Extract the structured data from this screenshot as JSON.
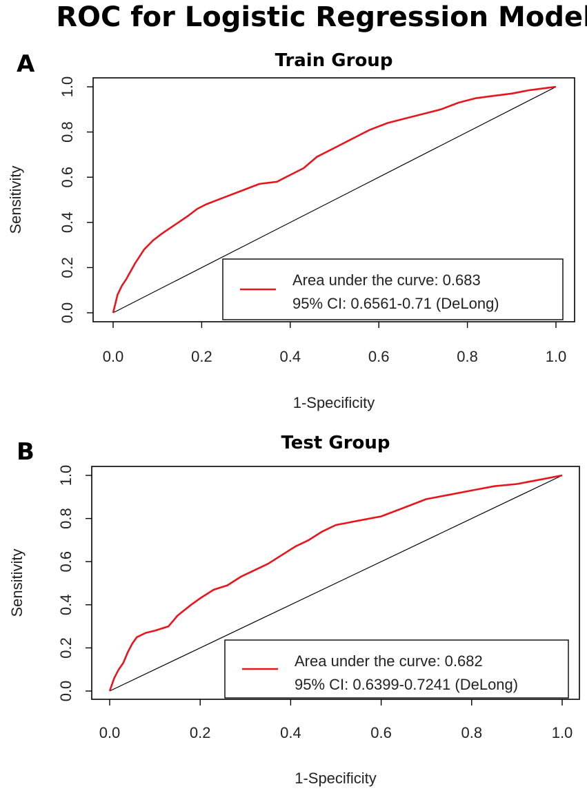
{
  "figure": {
    "title": "ROC for Logistic Regression Model"
  },
  "colors": {
    "roc_curve": "#e8141c",
    "diagonal": "#000000",
    "axis": "#000000"
  },
  "chart_data": [
    {
      "type": "line",
      "panel_label": "A",
      "title": "Train Group",
      "xlabel": "1-Specificity",
      "ylabel": "Sensitivity",
      "xlim": [
        0.0,
        1.0
      ],
      "ylim": [
        0.0,
        1.0
      ],
      "xticks": [
        "0.0",
        "0.2",
        "0.4",
        "0.6",
        "0.8",
        "1.0"
      ],
      "yticks": [
        "0.0",
        "0.2",
        "0.4",
        "0.6",
        "0.8",
        "1.0"
      ],
      "legend": {
        "placement": "bottom-right",
        "entries": [
          "Area under the curve: 0.683",
          "95% CI: 0.6561-0.71 (DeLong)"
        ]
      },
      "series": [
        {
          "name": "ROC curve",
          "x": [
            0.0,
            0.005,
            0.01,
            0.02,
            0.03,
            0.05,
            0.07,
            0.09,
            0.11,
            0.14,
            0.17,
            0.19,
            0.21,
            0.25,
            0.29,
            0.33,
            0.37,
            0.4,
            0.43,
            0.46,
            0.5,
            0.54,
            0.58,
            0.62,
            0.66,
            0.7,
            0.74,
            0.78,
            0.82,
            0.86,
            0.9,
            0.94,
            0.98,
            1.0
          ],
          "y": [
            0.0,
            0.04,
            0.08,
            0.12,
            0.15,
            0.22,
            0.28,
            0.32,
            0.35,
            0.39,
            0.43,
            0.46,
            0.48,
            0.51,
            0.54,
            0.57,
            0.58,
            0.61,
            0.64,
            0.69,
            0.73,
            0.77,
            0.81,
            0.84,
            0.86,
            0.88,
            0.9,
            0.93,
            0.95,
            0.96,
            0.97,
            0.985,
            0.995,
            1.0
          ]
        },
        {
          "name": "reference diagonal",
          "x": [
            0.0,
            1.0
          ],
          "y": [
            0.0,
            1.0
          ]
        }
      ]
    },
    {
      "type": "line",
      "panel_label": "B",
      "title": "Test Group",
      "xlabel": "1-Specificity",
      "ylabel": "Sensitivity",
      "xlim": [
        0.0,
        1.0
      ],
      "ylim": [
        0.0,
        1.0
      ],
      "xticks": [
        "0.0",
        "0.2",
        "0.4",
        "0.6",
        "0.8",
        "1.0"
      ],
      "yticks": [
        "0.0",
        "0.2",
        "0.4",
        "0.6",
        "0.8",
        "1.0"
      ],
      "legend": {
        "placement": "bottom-right",
        "entries": [
          "Area under the curve: 0.682",
          "95% CI: 0.6399-0.7241 (DeLong)"
        ]
      },
      "series": [
        {
          "name": "ROC curve",
          "x": [
            0.0,
            0.01,
            0.02,
            0.03,
            0.04,
            0.05,
            0.06,
            0.08,
            0.1,
            0.13,
            0.15,
            0.18,
            0.2,
            0.23,
            0.26,
            0.29,
            0.32,
            0.35,
            0.38,
            0.41,
            0.44,
            0.47,
            0.5,
            0.55,
            0.6,
            0.65,
            0.7,
            0.75,
            0.8,
            0.85,
            0.9,
            0.95,
            1.0
          ],
          "y": [
            0.0,
            0.06,
            0.1,
            0.13,
            0.18,
            0.22,
            0.25,
            0.27,
            0.28,
            0.3,
            0.35,
            0.4,
            0.43,
            0.47,
            0.49,
            0.53,
            0.56,
            0.59,
            0.63,
            0.67,
            0.7,
            0.74,
            0.77,
            0.79,
            0.81,
            0.85,
            0.89,
            0.91,
            0.93,
            0.95,
            0.96,
            0.98,
            1.0
          ]
        },
        {
          "name": "reference diagonal",
          "x": [
            0.0,
            1.0
          ],
          "y": [
            0.0,
            1.0
          ]
        }
      ]
    }
  ]
}
